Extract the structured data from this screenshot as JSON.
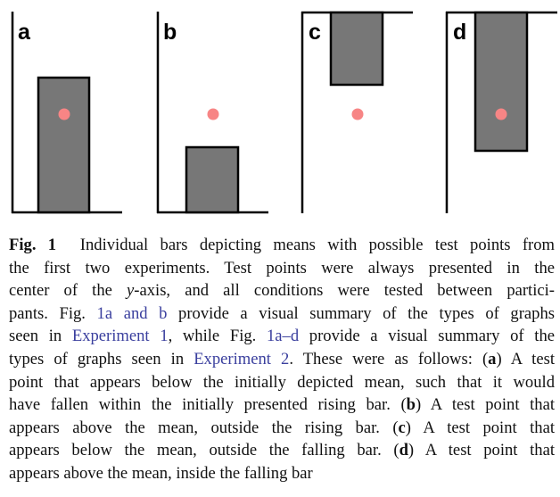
{
  "figure": {
    "panels": [
      {
        "label": "a",
        "bar_type": "rising",
        "test_point": "below the mean, inside the bar"
      },
      {
        "label": "b",
        "bar_type": "rising",
        "test_point": "above the mean, outside the bar"
      },
      {
        "label": "c",
        "bar_type": "falling",
        "test_point": "below the mean, outside the bar"
      },
      {
        "label": "d",
        "bar_type": "falling",
        "test_point": "above the mean, inside the bar"
      }
    ],
    "colors": {
      "bar": "#777777",
      "bar_outline": "#000000",
      "test_point": "#f78585",
      "axis": "#000000"
    }
  },
  "caption": {
    "fig_label": "Fig. 1",
    "l1": "Individual bars depicting means with possible test points from",
    "l2": "the first two experiments. Test points were always presented in the",
    "l3_a": "center of the ",
    "l3_y": "y",
    "l3_b": "-axis, and all conditions were tested between partici-",
    "l4_a": "pants. Fig. ",
    "l4_ref": "1a and b",
    "l4_b": " provide a visual summary of the types of graphs",
    "l5_a": "seen in ",
    "l5_ref1": "Experiment 1",
    "l5_b": ", while Fig. ",
    "l5_ref2": "1a–d",
    "l5_c": " provide a visual summary of the",
    "l6_a": "types of graphs seen in ",
    "l6_ref": "Experiment 2",
    "l6_b": ". These were as follows: (",
    "l6_bold": "a",
    "l6_c": ") A test",
    "l7": "point that appears below the initially depicted mean, such that it would",
    "l8_a": "have fallen within the initially presented rising bar. (",
    "l8_bold": "b",
    "l8_b": ") A test point that",
    "l9_a": "appears above the mean, outside the rising bar. (",
    "l9_bold": "c",
    "l9_b": ") A test point that",
    "l10_a": "appears below the mean, outside the falling bar. (",
    "l10_bold": "d",
    "l10_b": ") A test point that",
    "l11": "appears above the mean, inside the falling bar"
  }
}
